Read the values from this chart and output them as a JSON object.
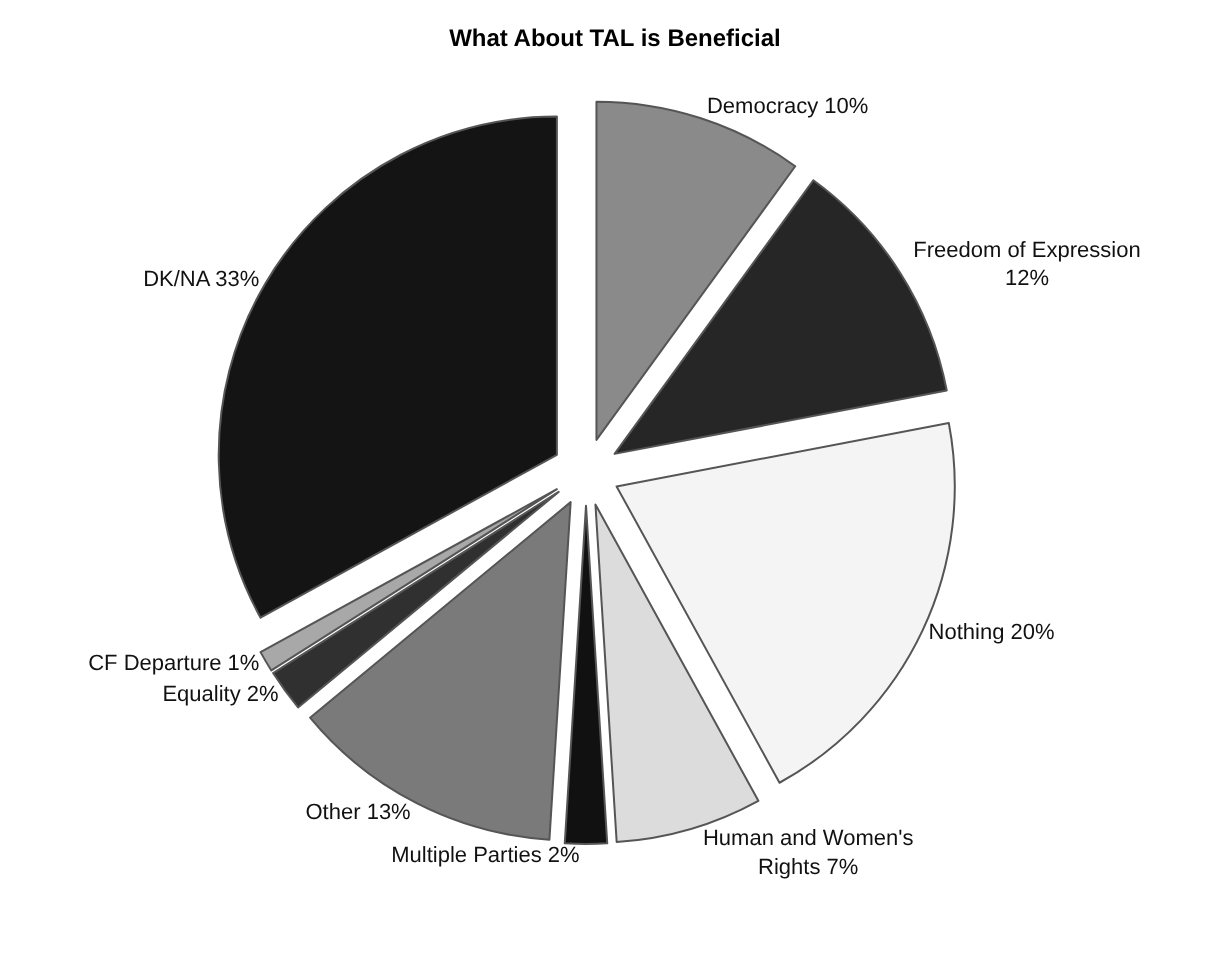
{
  "chart_data": {
    "type": "pie",
    "title": "What About TAL is Beneficial",
    "categories": [
      "Democracy",
      "Freedom of Expression",
      "Nothing",
      "Human and Women's Rights",
      "Multiple Parties",
      "Other",
      "Equality",
      "CF Departure",
      "DK/NA"
    ],
    "values": [
      10,
      12,
      20,
      7,
      2,
      13,
      2,
      1,
      33
    ],
    "value_labels": [
      "10%",
      "12%",
      "20%",
      "7%",
      "2%",
      "13%",
      "2%",
      "1%",
      "33%"
    ],
    "colors": [
      "#8a8a8a",
      "#262626",
      "#f4f4f4",
      "#dcdcdc",
      "#111111",
      "#7a7a7a",
      "#303030",
      "#a8a8a8",
      "#141414"
    ],
    "legend": false
  }
}
